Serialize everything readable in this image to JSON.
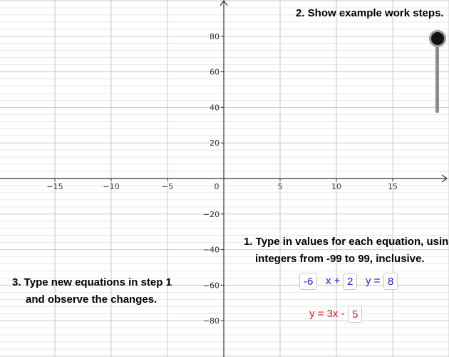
{
  "graph": {
    "x_ticks": [
      "−15",
      "−10",
      "−5",
      "0",
      "5",
      "10",
      "15"
    ],
    "y_ticks": [
      "80",
      "60",
      "40",
      "20",
      "−20",
      "−40",
      "−60",
      "−80"
    ],
    "x_range": [
      -20,
      20
    ],
    "y_range": [
      -100,
      100
    ]
  },
  "slider": {
    "value": 1
  },
  "steps": {
    "step1_line1": "1. Type in values for each equation, usin",
    "step1_line2": "integers from -99 to 99, inclusive.",
    "step2": "2. Show example work steps.",
    "step3_line1": "3. Type new equations in step 1",
    "step3_line2": "and observe the changes."
  },
  "equation1": {
    "a_value": "-6",
    "x_plus": "x +",
    "b_value": "2",
    "y_equals": "y =",
    "c_value": "8"
  },
  "equation2": {
    "prefix": "y = 3x -",
    "value": "5"
  },
  "colors": {
    "blue": "#1f1fcc",
    "red": "#e0161c"
  }
}
